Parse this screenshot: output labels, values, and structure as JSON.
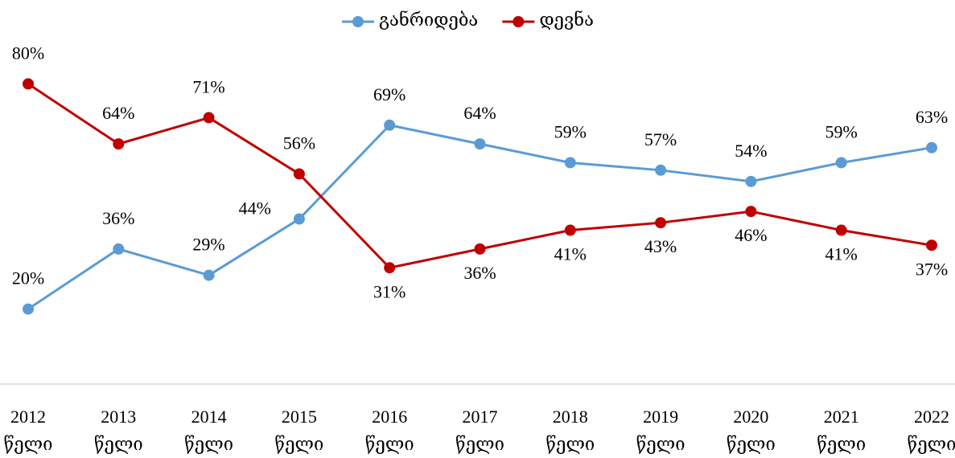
{
  "chart_data": {
    "type": "line",
    "categories": [
      "2012 წელი",
      "2013 წელი",
      "2014 წელი",
      "2015 წელი",
      "2016 წელი",
      "2017 წელი",
      "2018 წელი",
      "2019 წელი",
      "2020 წელი",
      "2021 წელი",
      "2022 წელი"
    ],
    "series": [
      {
        "name": "განრიდება",
        "color": "#5b9bd5",
        "values": [
          20,
          36,
          29,
          44,
          69,
          64,
          59,
          57,
          54,
          59,
          63
        ],
        "value_labels": [
          "20%",
          "36%",
          "29%",
          "44%",
          "69%",
          "64%",
          "59%",
          "57%",
          "54%",
          "59%",
          "63%"
        ]
      },
      {
        "name": "დევნა",
        "color": "#c00000",
        "values": [
          80,
          64,
          71,
          56,
          31,
          36,
          41,
          43,
          46,
          41,
          37
        ],
        "value_labels": [
          "80%",
          "64%",
          "71%",
          "56%",
          "31%",
          "36%",
          "41%",
          "43%",
          "46%",
          "41%",
          "37%"
        ]
      }
    ],
    "ylim": [
      0,
      100
    ],
    "legend": "top"
  }
}
